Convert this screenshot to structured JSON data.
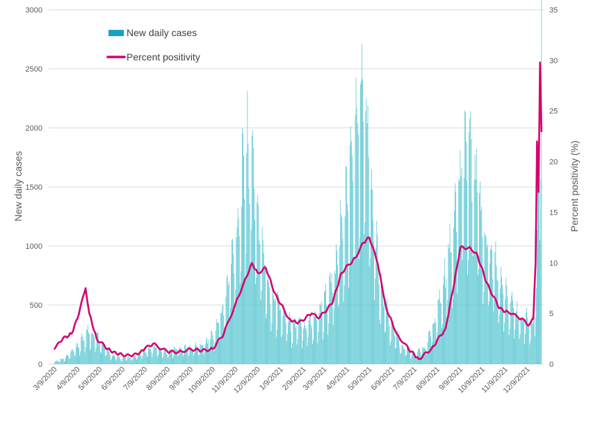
{
  "chart_data": {
    "type": "bar",
    "title": "",
    "xlabel": "",
    "ylabel": "New daily cases",
    "y2label": "Percent positivity (%)",
    "ylim": [
      0,
      3000
    ],
    "y2lim": [
      0,
      35
    ],
    "yticks": [
      "0",
      "500",
      "1000",
      "1500",
      "2000",
      "2500",
      "3000"
    ],
    "y2ticks": [
      "0",
      "5",
      "10",
      "15",
      "20",
      "25",
      "30",
      "35"
    ],
    "grid": true,
    "legend": "top-left",
    "colors": {
      "bars": "#4fc3cf",
      "bars_legend": "#17a2c3",
      "line": "#d5006f"
    },
    "categories": [
      "3/9/2020",
      "4/9/2020",
      "5/9/2020",
      "6/9/2020",
      "7/9/2020",
      "8/9/2020",
      "9/9/2020",
      "10/9/2020",
      "11/9/2020",
      "12/9/2020",
      "1/9/2021",
      "2/9/2021",
      "3/9/2021",
      "4/9/2021",
      "5/9/2021",
      "6/9/2021",
      "7/9/2021",
      "8/9/2021",
      "9/9/2021",
      "10/9/2021",
      "11/9/2021",
      "12/9/2021"
    ],
    "series": [
      {
        "name": "New daily cases",
        "kind": "bar",
        "axis": "left",
        "x": [
          "3/9/2020",
          "3/24/2020",
          "4/9/2020",
          "4/24/2020",
          "5/9/2020",
          "5/24/2020",
          "6/9/2020",
          "6/24/2020",
          "7/9/2020",
          "7/24/2020",
          "8/9/2020",
          "8/24/2020",
          "9/9/2020",
          "9/24/2020",
          "10/9/2020",
          "10/24/2020",
          "11/9/2020",
          "11/16/2020",
          "11/24/2020",
          "12/1/2020",
          "12/9/2020",
          "12/16/2020",
          "12/24/2020",
          "1/9/2021",
          "1/24/2021",
          "2/9/2021",
          "2/24/2021",
          "3/9/2021",
          "3/24/2021",
          "4/9/2021",
          "4/16/2021",
          "4/24/2021",
          "5/1/2021",
          "5/9/2021",
          "5/16/2021",
          "5/24/2021",
          "6/9/2021",
          "6/24/2021",
          "7/9/2021",
          "7/24/2021",
          "8/9/2021",
          "8/24/2021",
          "9/9/2021",
          "9/16/2021",
          "9/24/2021",
          "10/1/2021",
          "10/9/2021",
          "10/24/2021",
          "11/9/2021",
          "11/24/2021",
          "12/9/2021",
          "12/16/2021",
          "12/21/2021",
          "12/25/2021",
          "12/28/2021"
        ],
        "values": [
          20,
          60,
          150,
          300,
          220,
          80,
          50,
          60,
          120,
          150,
          110,
          140,
          150,
          160,
          250,
          500,
          1100,
          1500,
          1850,
          1800,
          1300,
          1000,
          700,
          500,
          350,
          350,
          400,
          550,
          800,
          1500,
          1800,
          2100,
          2400,
          1900,
          1300,
          700,
          300,
          150,
          100,
          150,
          450,
          900,
          1600,
          1950,
          1800,
          1700,
          1200,
          900,
          600,
          450,
          400,
          350,
          700,
          2100,
          2800
        ]
      },
      {
        "name": "Percent positivity",
        "kind": "line",
        "axis": "right",
        "x": [
          "3/9/2020",
          "3/20/2020",
          "4/1/2020",
          "4/9/2020",
          "4/20/2020",
          "4/25/2020",
          "5/5/2020",
          "5/20/2020",
          "6/1/2020",
          "6/20/2020",
          "7/1/2020",
          "7/9/2020",
          "7/20/2020",
          "8/9/2020",
          "8/24/2020",
          "9/9/2020",
          "9/24/2020",
          "10/9/2020",
          "10/24/2020",
          "11/9/2020",
          "11/20/2020",
          "12/1/2020",
          "12/9/2020",
          "12/20/2020",
          "1/1/2021",
          "1/20/2021",
          "2/1/2021",
          "2/20/2021",
          "3/1/2021",
          "3/20/2021",
          "4/1/2021",
          "4/20/2021",
          "5/1/2021",
          "5/9/2021",
          "5/20/2021",
          "6/1/2021",
          "6/15/2021",
          "7/1/2021",
          "7/15/2021",
          "8/1/2021",
          "8/20/2021",
          "9/1/2021",
          "9/9/2021",
          "9/20/2021",
          "10/1/2021",
          "10/15/2021",
          "11/1/2021",
          "11/15/2021",
          "12/1/2021",
          "12/10/2021",
          "12/17/2021",
          "12/20/2021",
          "12/22/2021",
          "12/24/2021",
          "12/26/2021",
          "12/28/2021"
        ],
        "values": [
          1.5,
          2.5,
          3,
          4.5,
          7.5,
          5,
          2.5,
          1.5,
          1,
          0.8,
          1,
          1.5,
          2,
          1.2,
          1.2,
          1.5,
          1.3,
          1.5,
          3,
          6,
          8,
          10,
          9,
          9.5,
          7,
          4.5,
          4,
          5,
          4.5,
          6,
          9,
          10.5,
          12,
          12.5,
          10,
          5.5,
          3,
          1.5,
          0.5,
          1.5,
          3.5,
          8,
          11.5,
          11.5,
          11,
          8,
          5.5,
          5,
          4.5,
          3.8,
          4.5,
          10,
          22,
          17,
          29.8,
          23
        ]
      }
    ]
  }
}
